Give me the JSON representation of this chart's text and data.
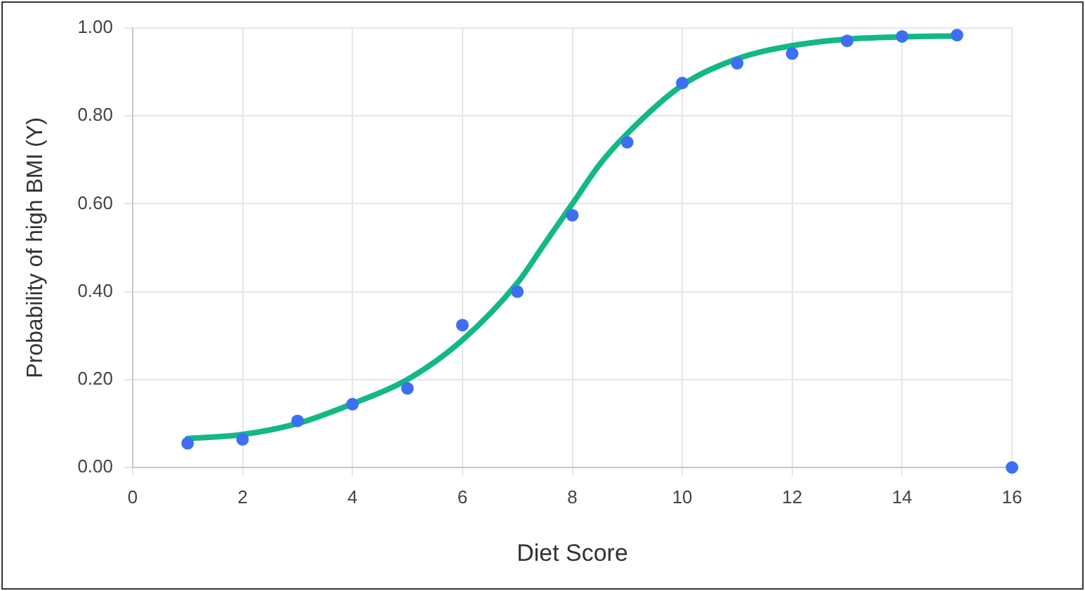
{
  "chart_data": {
    "type": "scatter",
    "xlabel": "Diet Score",
    "ylabel": "Probability of high BMI (Y)",
    "xlim": [
      0,
      16
    ],
    "xticks": [
      0,
      2,
      4,
      6,
      8,
      10,
      12,
      14,
      16
    ],
    "ylim": [
      0,
      1
    ],
    "yticks": [
      {
        "value": 0,
        "label": "0.00"
      },
      {
        "value": 0.2,
        "label": "0.20"
      },
      {
        "value": 0.4,
        "label": "0.40"
      },
      {
        "value": 0.6,
        "label": "0.60"
      },
      {
        "value": 0.8,
        "label": "0.80"
      },
      {
        "value": 1,
        "label": "1.00"
      }
    ],
    "grid": true,
    "legend": false,
    "marker": "circle",
    "series": [
      {
        "color": "#3d6ff5",
        "x": [
          1,
          2,
          3,
          4,
          5,
          6,
          7,
          8,
          9,
          10,
          11,
          12,
          13,
          14,
          15,
          16
        ],
        "values": [
          0.055,
          0.064,
          0.106,
          0.144,
          0.18,
          0.324,
          0.4,
          0.574,
          0.74,
          0.875,
          0.92,
          0.942,
          0.971,
          0.981,
          0.984,
          0
        ]
      },
      {
        "type": "line",
        "color": "#12b886",
        "marker": "none",
        "line_style": "solid",
        "x": [
          1,
          2,
          3,
          4,
          5,
          6,
          7,
          7.5,
          8,
          8.5,
          9,
          10,
          11,
          12,
          13,
          14,
          15
        ],
        "values": [
          0.066,
          0.075,
          0.1,
          0.145,
          0.2,
          0.29,
          0.42,
          0.51,
          0.6,
          0.69,
          0.76,
          0.87,
          0.93,
          0.96,
          0.975,
          0.98,
          0.982
        ]
      }
    ]
  }
}
